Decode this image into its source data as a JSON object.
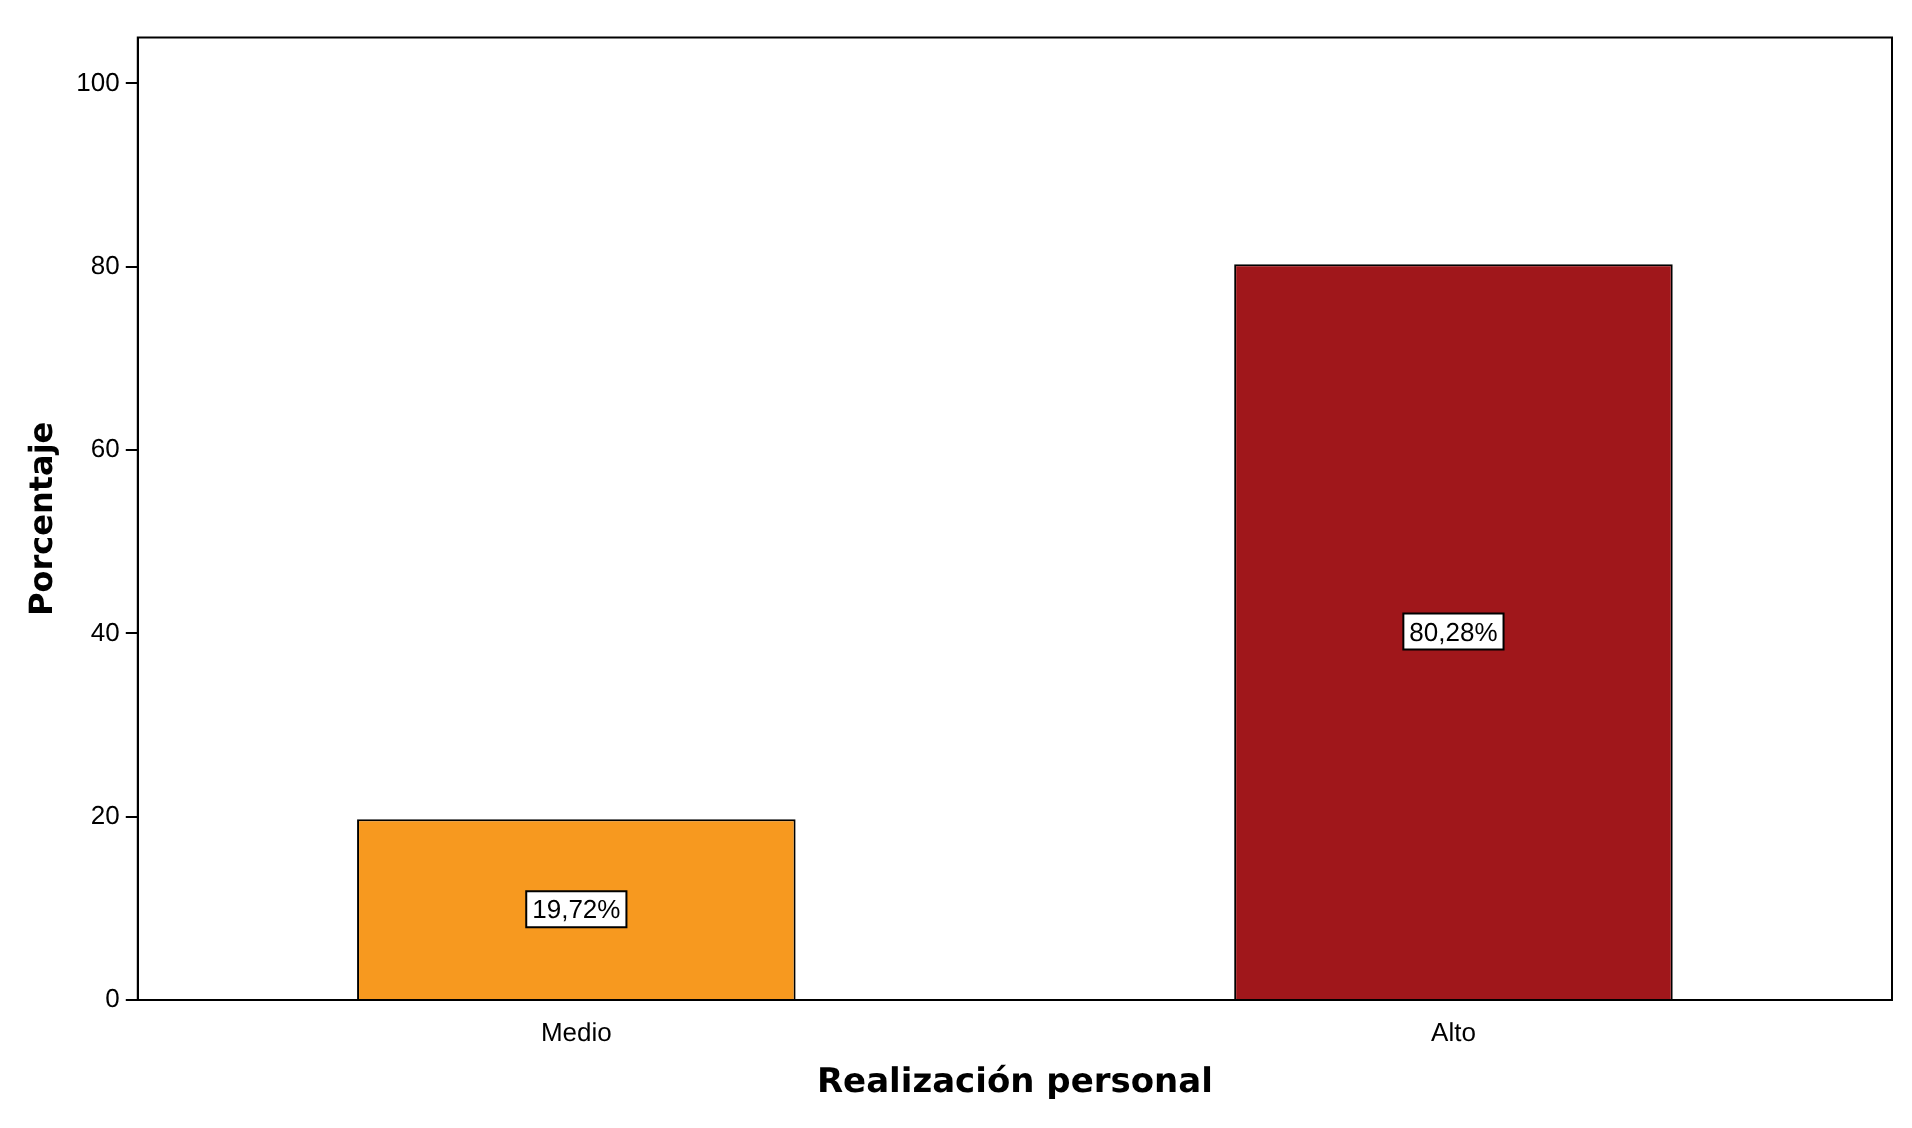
{
  "chart_data": {
    "type": "bar",
    "categories": [
      "Medio",
      "Alto"
    ],
    "values": [
      19.72,
      80.28
    ],
    "colors": [
      "#f7991f",
      "#a0171b"
    ],
    "value_labels": [
      "19,72%",
      "80,28%"
    ],
    "xlabel": "Realización personal",
    "ylabel": "Porcentaje",
    "ylim": [
      0,
      105
    ],
    "yticks": [
      0,
      20,
      40,
      60,
      80,
      100
    ],
    "grid": false,
    "legend": false
  }
}
